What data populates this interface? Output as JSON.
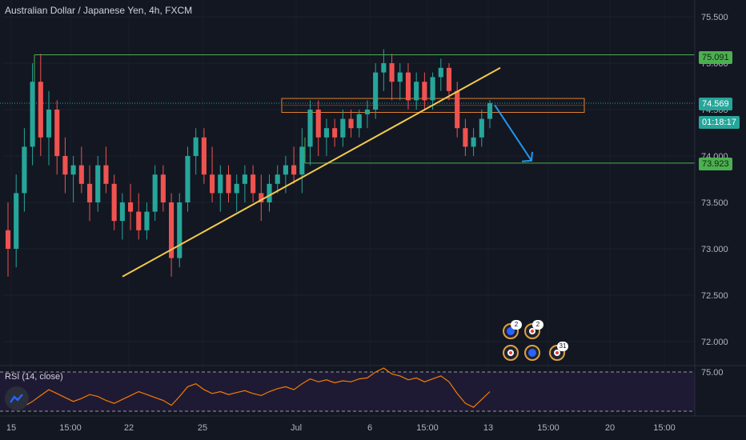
{
  "title": "Australian Dollar / Japanese Yen, 4h, FXCM",
  "rsi_title": "RSI (14, close)",
  "colors": {
    "bg": "#131722",
    "up": "#26a69a",
    "down": "#ef5350",
    "trendline": "#f2c94c",
    "level": "#4caf50",
    "zone": "#e0802c",
    "arrow": "#2196f3",
    "rsi": "#f57c00"
  },
  "price_axis": [
    "75.500",
    "75.000",
    "74.500",
    "74.000",
    "73.500",
    "73.000",
    "72.500",
    "72.000"
  ],
  "rsi_axis_label": "75.00",
  "time_axis": [
    "15",
    "15:00",
    "22",
    "25",
    "Jul",
    "6",
    "15:00",
    "13",
    "15:00",
    "20",
    "15:00"
  ],
  "tags": {
    "upper_level": "75.091",
    "current_price": "74.569",
    "countdown": "01:18:17",
    "lower_level": "73.923"
  },
  "event_badges": [
    "2",
    "2",
    "31"
  ],
  "chart_data": {
    "type": "candlestick",
    "symbol": "AUDJPY",
    "timeframe": "4h",
    "source": "FXCM",
    "ylim": [
      71.7,
      75.75
    ],
    "candles": [
      {
        "o": 73.2,
        "h": 73.5,
        "l": 72.7,
        "c": 73.0
      },
      {
        "o": 73.0,
        "h": 73.8,
        "l": 72.8,
        "c": 73.6
      },
      {
        "o": 73.6,
        "h": 74.3,
        "l": 73.4,
        "c": 74.1
      },
      {
        "o": 74.1,
        "h": 75.0,
        "l": 73.9,
        "c": 74.8
      },
      {
        "o": 74.8,
        "h": 75.1,
        "l": 74.0,
        "c": 74.2
      },
      {
        "o": 74.2,
        "h": 74.7,
        "l": 73.9,
        "c": 74.5
      },
      {
        "o": 74.5,
        "h": 74.6,
        "l": 73.8,
        "c": 74.0
      },
      {
        "o": 74.0,
        "h": 74.2,
        "l": 73.6,
        "c": 73.8
      },
      {
        "o": 73.8,
        "h": 74.0,
        "l": 73.5,
        "c": 73.9
      },
      {
        "o": 73.9,
        "h": 74.1,
        "l": 73.6,
        "c": 73.7
      },
      {
        "o": 73.7,
        "h": 73.9,
        "l": 73.3,
        "c": 73.5
      },
      {
        "o": 73.5,
        "h": 74.0,
        "l": 73.4,
        "c": 73.9
      },
      {
        "o": 73.9,
        "h": 74.1,
        "l": 73.6,
        "c": 73.7
      },
      {
        "o": 73.7,
        "h": 73.8,
        "l": 73.2,
        "c": 73.3
      },
      {
        "o": 73.3,
        "h": 73.6,
        "l": 73.1,
        "c": 73.5
      },
      {
        "o": 73.5,
        "h": 73.7,
        "l": 73.2,
        "c": 73.4
      },
      {
        "o": 73.4,
        "h": 73.6,
        "l": 73.1,
        "c": 73.2
      },
      {
        "o": 73.2,
        "h": 73.5,
        "l": 73.1,
        "c": 73.4
      },
      {
        "o": 73.4,
        "h": 73.9,
        "l": 73.3,
        "c": 73.8
      },
      {
        "o": 73.8,
        "h": 73.9,
        "l": 73.4,
        "c": 73.5
      },
      {
        "o": 73.5,
        "h": 73.6,
        "l": 72.7,
        "c": 72.9
      },
      {
        "o": 72.9,
        "h": 73.6,
        "l": 72.8,
        "c": 73.5
      },
      {
        "o": 73.5,
        "h": 74.1,
        "l": 73.4,
        "c": 74.0
      },
      {
        "o": 74.0,
        "h": 74.3,
        "l": 73.8,
        "c": 74.2
      },
      {
        "o": 74.2,
        "h": 74.3,
        "l": 73.7,
        "c": 73.8
      },
      {
        "o": 73.8,
        "h": 74.1,
        "l": 73.5,
        "c": 73.6
      },
      {
        "o": 73.6,
        "h": 73.9,
        "l": 73.4,
        "c": 73.8
      },
      {
        "o": 73.8,
        "h": 73.9,
        "l": 73.5,
        "c": 73.6
      },
      {
        "o": 73.6,
        "h": 73.8,
        "l": 73.4,
        "c": 73.7
      },
      {
        "o": 73.7,
        "h": 73.9,
        "l": 73.5,
        "c": 73.8
      },
      {
        "o": 73.8,
        "h": 73.9,
        "l": 73.5,
        "c": 73.6
      },
      {
        "o": 73.6,
        "h": 73.8,
        "l": 73.3,
        "c": 73.5
      },
      {
        "o": 73.5,
        "h": 73.8,
        "l": 73.4,
        "c": 73.7
      },
      {
        "o": 73.7,
        "h": 73.9,
        "l": 73.6,
        "c": 73.8
      },
      {
        "o": 73.8,
        "h": 74.0,
        "l": 73.6,
        "c": 73.9
      },
      {
        "o": 73.9,
        "h": 74.1,
        "l": 73.7,
        "c": 73.8
      },
      {
        "o": 73.8,
        "h": 74.3,
        "l": 73.6,
        "c": 74.1
      },
      {
        "o": 74.1,
        "h": 74.6,
        "l": 73.9,
        "c": 74.5
      },
      {
        "o": 74.5,
        "h": 74.6,
        "l": 74.0,
        "c": 74.2
      },
      {
        "o": 74.2,
        "h": 74.4,
        "l": 74.0,
        "c": 74.3
      },
      {
        "o": 74.3,
        "h": 74.4,
        "l": 74.1,
        "c": 74.2
      },
      {
        "o": 74.2,
        "h": 74.5,
        "l": 74.1,
        "c": 74.4
      },
      {
        "o": 74.4,
        "h": 74.5,
        "l": 74.2,
        "c": 74.3
      },
      {
        "o": 74.3,
        "h": 74.5,
        "l": 74.2,
        "c": 74.45
      },
      {
        "o": 74.45,
        "h": 74.6,
        "l": 74.3,
        "c": 74.5
      },
      {
        "o": 74.5,
        "h": 75.0,
        "l": 74.4,
        "c": 74.9
      },
      {
        "o": 74.9,
        "h": 75.15,
        "l": 74.7,
        "c": 75.0
      },
      {
        "o": 75.0,
        "h": 75.1,
        "l": 74.6,
        "c": 74.8
      },
      {
        "o": 74.8,
        "h": 75.0,
        "l": 74.6,
        "c": 74.9
      },
      {
        "o": 74.9,
        "h": 75.0,
        "l": 74.5,
        "c": 74.6
      },
      {
        "o": 74.6,
        "h": 74.9,
        "l": 74.5,
        "c": 74.8
      },
      {
        "o": 74.8,
        "h": 74.9,
        "l": 74.5,
        "c": 74.6
      },
      {
        "o": 74.6,
        "h": 74.9,
        "l": 74.5,
        "c": 74.85
      },
      {
        "o": 74.85,
        "h": 75.05,
        "l": 74.7,
        "c": 74.95
      },
      {
        "o": 74.95,
        "h": 75.0,
        "l": 74.6,
        "c": 74.7
      },
      {
        "o": 74.7,
        "h": 74.8,
        "l": 74.2,
        "c": 74.3
      },
      {
        "o": 74.3,
        "h": 74.4,
        "l": 74.0,
        "c": 74.1
      },
      {
        "o": 74.1,
        "h": 74.3,
        "l": 74.0,
        "c": 74.2
      },
      {
        "o": 74.2,
        "h": 74.5,
        "l": 74.1,
        "c": 74.4
      },
      {
        "o": 74.4,
        "h": 74.6,
        "l": 74.3,
        "c": 74.57
      }
    ],
    "horizontal_levels": [
      75.091,
      73.923
    ],
    "current_price": 74.569,
    "resistance_zone": [
      74.47,
      74.62
    ],
    "trendline": {
      "from_price": 72.7,
      "to_price": 74.95
    },
    "projection_arrow": {
      "from_price": 74.55,
      "to_price": 73.95
    },
    "rsi": {
      "label": "RSI (14, close)",
      "values": [
        42,
        38,
        35,
        40,
        46,
        52,
        48,
        44,
        40,
        43,
        47,
        45,
        41,
        38,
        42,
        46,
        50,
        47,
        44,
        41,
        36,
        45,
        55,
        58,
        52,
        48,
        50,
        47,
        49,
        51,
        48,
        46,
        50,
        53,
        55,
        52,
        58,
        63,
        60,
        62,
        59,
        61,
        60,
        63,
        64,
        70,
        74,
        68,
        66,
        62,
        64,
        60,
        63,
        66,
        60,
        48,
        38,
        34,
        42,
        50
      ]
    }
  }
}
